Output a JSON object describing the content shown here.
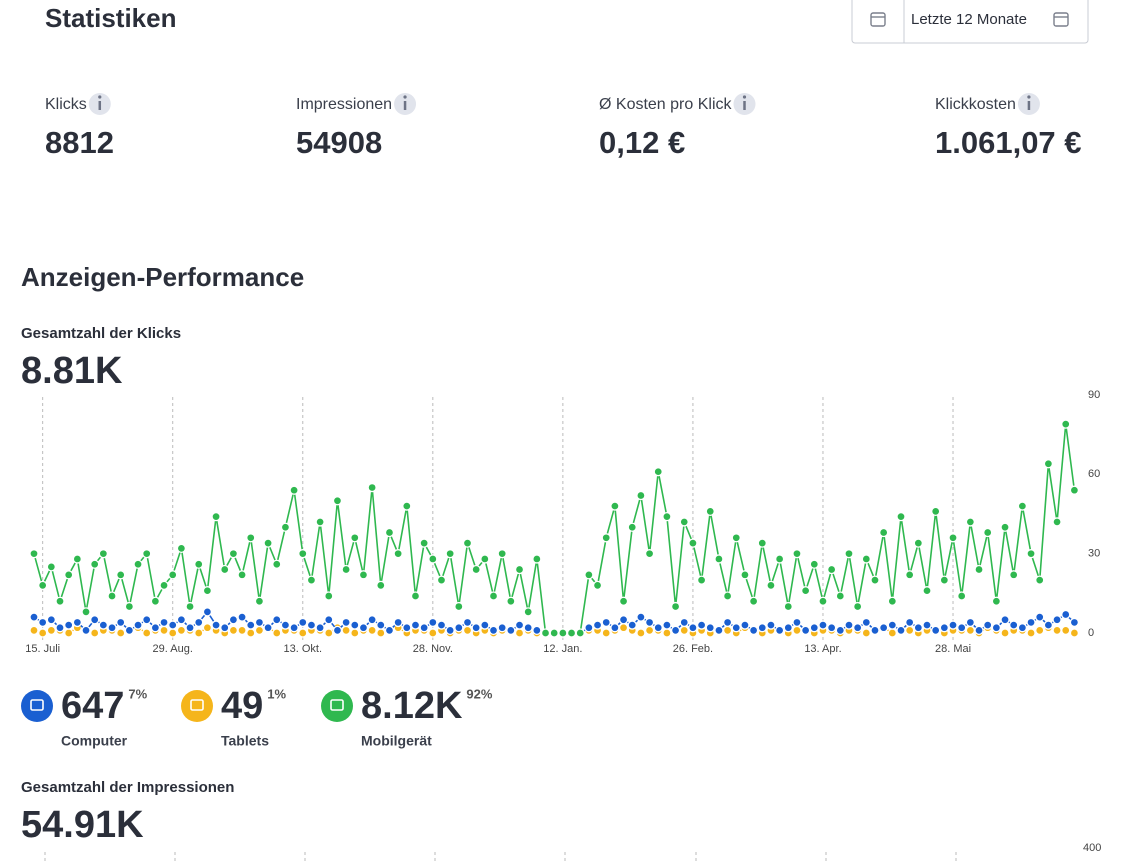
{
  "header": {
    "title": "Statistiken",
    "date_range": "Letzte 12 Monate"
  },
  "kpis": [
    {
      "label": "Klicks",
      "value": "8812"
    },
    {
      "label": "Impressionen",
      "value": "54908"
    },
    {
      "label": "Ø Kosten pro Klick",
      "value": "0,12 €"
    },
    {
      "label": "Klickkosten",
      "value": "1.061,07 €"
    }
  ],
  "section_title": "Anzeigen-Performance",
  "clicks": {
    "title": "Gesamtzahl der Klicks",
    "total": "8.81K"
  },
  "chart_data": {
    "type": "line",
    "categories": [
      null,
      "15. Juli",
      null,
      null,
      null,
      null,
      null,
      null,
      null,
      null,
      null,
      null,
      null,
      null,
      null,
      null,
      "29. Aug.",
      null,
      null,
      null,
      null,
      null,
      null,
      null,
      null,
      null,
      null,
      null,
      null,
      null,
      null,
      "13. Okt.",
      null,
      null,
      null,
      null,
      null,
      null,
      null,
      null,
      null,
      null,
      null,
      null,
      null,
      null,
      "28. Nov.",
      null,
      null,
      null,
      null,
      null,
      null,
      null,
      null,
      null,
      null,
      null,
      null,
      null,
      null,
      "12. Jan.",
      null,
      null,
      null,
      null,
      null,
      null,
      null,
      null,
      null,
      null,
      null,
      null,
      null,
      null,
      "26. Feb.",
      null,
      null,
      null,
      null,
      null,
      null,
      null,
      null,
      null,
      null,
      null,
      null,
      null,
      null,
      "13. Apr.",
      null,
      null,
      null,
      null,
      null,
      null,
      null,
      null,
      null,
      null,
      null,
      null,
      null,
      null,
      "28. Mai",
      null,
      null,
      null,
      null,
      null,
      null,
      null,
      null,
      null,
      null,
      null,
      null,
      null,
      null
    ],
    "series": [
      {
        "name": "Tablets",
        "color": "#f5b51b",
        "values": [
          1,
          0,
          1,
          1,
          0,
          2,
          1,
          0,
          1,
          1,
          0,
          1,
          2,
          0,
          1,
          1,
          0,
          1,
          1,
          0,
          2,
          1,
          0,
          1,
          1,
          0,
          1,
          2,
          0,
          1,
          1,
          0,
          1,
          1,
          0,
          2,
          1,
          0,
          1,
          1,
          0,
          1,
          2,
          0,
          1,
          1,
          0,
          1,
          0,
          1,
          1,
          0,
          1,
          0,
          1,
          1,
          0,
          1,
          0,
          0,
          0,
          0,
          0,
          0,
          1,
          1,
          0,
          1,
          2,
          1,
          0,
          1,
          1,
          0,
          1,
          1,
          0,
          1,
          0,
          1,
          1,
          0,
          2,
          1,
          0,
          1,
          1,
          0,
          1,
          1,
          0,
          1,
          1,
          0,
          1,
          1,
          0,
          1,
          2,
          0,
          1,
          1,
          0,
          1,
          1,
          0,
          1,
          1,
          1,
          0,
          2,
          1,
          0,
          1,
          1,
          0,
          1,
          2,
          1,
          1,
          0
        ]
      },
      {
        "name": "Computer",
        "color": "#1a5fd1",
        "values": [
          6,
          4,
          5,
          2,
          3,
          4,
          1,
          5,
          3,
          2,
          4,
          1,
          3,
          5,
          2,
          4,
          3,
          5,
          2,
          4,
          8,
          3,
          2,
          5,
          6,
          3,
          4,
          2,
          5,
          3,
          2,
          4,
          3,
          2,
          5,
          1,
          4,
          3,
          2,
          5,
          3,
          1,
          4,
          2,
          3,
          2,
          4,
          3,
          1,
          2,
          4,
          2,
          3,
          1,
          2,
          1,
          3,
          2,
          1,
          0,
          0,
          0,
          0,
          0,
          2,
          3,
          4,
          2,
          5,
          3,
          6,
          4,
          2,
          3,
          1,
          4,
          2,
          3,
          2,
          1,
          4,
          2,
          3,
          1,
          2,
          3,
          1,
          2,
          4,
          1,
          2,
          3,
          2,
          1,
          3,
          2,
          4,
          1,
          2,
          3,
          1,
          4,
          2,
          3,
          1,
          2,
          3,
          2,
          4,
          1,
          3,
          2,
          5,
          3,
          2,
          4,
          6,
          3,
          5,
          7,
          4
        ]
      },
      {
        "name": "Mobilgerät",
        "color": "#2fb84f",
        "values": [
          30,
          18,
          25,
          12,
          22,
          28,
          8,
          26,
          30,
          14,
          22,
          10,
          26,
          30,
          12,
          18,
          22,
          32,
          10,
          26,
          16,
          44,
          24,
          30,
          22,
          36,
          12,
          34,
          26,
          40,
          54,
          30,
          20,
          42,
          14,
          50,
          24,
          36,
          22,
          55,
          18,
          38,
          30,
          48,
          14,
          34,
          28,
          20,
          30,
          10,
          34,
          24,
          28,
          14,
          30,
          12,
          24,
          8,
          28,
          0,
          0,
          0,
          0,
          0,
          22,
          18,
          36,
          48,
          12,
          40,
          52,
          30,
          61,
          44,
          10,
          42,
          34,
          20,
          46,
          28,
          14,
          36,
          22,
          12,
          34,
          18,
          28,
          10,
          30,
          16,
          26,
          12,
          24,
          14,
          30,
          10,
          28,
          20,
          38,
          12,
          44,
          22,
          34,
          16,
          46,
          20,
          36,
          14,
          42,
          24,
          38,
          12,
          40,
          22,
          48,
          30,
          20,
          64,
          42,
          79,
          54
        ]
      }
    ],
    "ylim": [
      0,
      90
    ],
    "yticks": [
      0,
      30,
      60,
      90
    ],
    "grid": true
  },
  "devices": [
    {
      "value": "647",
      "share": "7%",
      "label": "Computer",
      "color": "#1a5fd1"
    },
    {
      "value": "49",
      "share": "1%",
      "label": "Tablets",
      "color": "#f5b51b"
    },
    {
      "value": "8.12K",
      "share": "92%",
      "label": "Mobilgerät",
      "color": "#2fb84f"
    }
  ],
  "impressions": {
    "title": "Gesamtzahl der Impressionen",
    "total": "54.91K",
    "top_tick": 400
  }
}
